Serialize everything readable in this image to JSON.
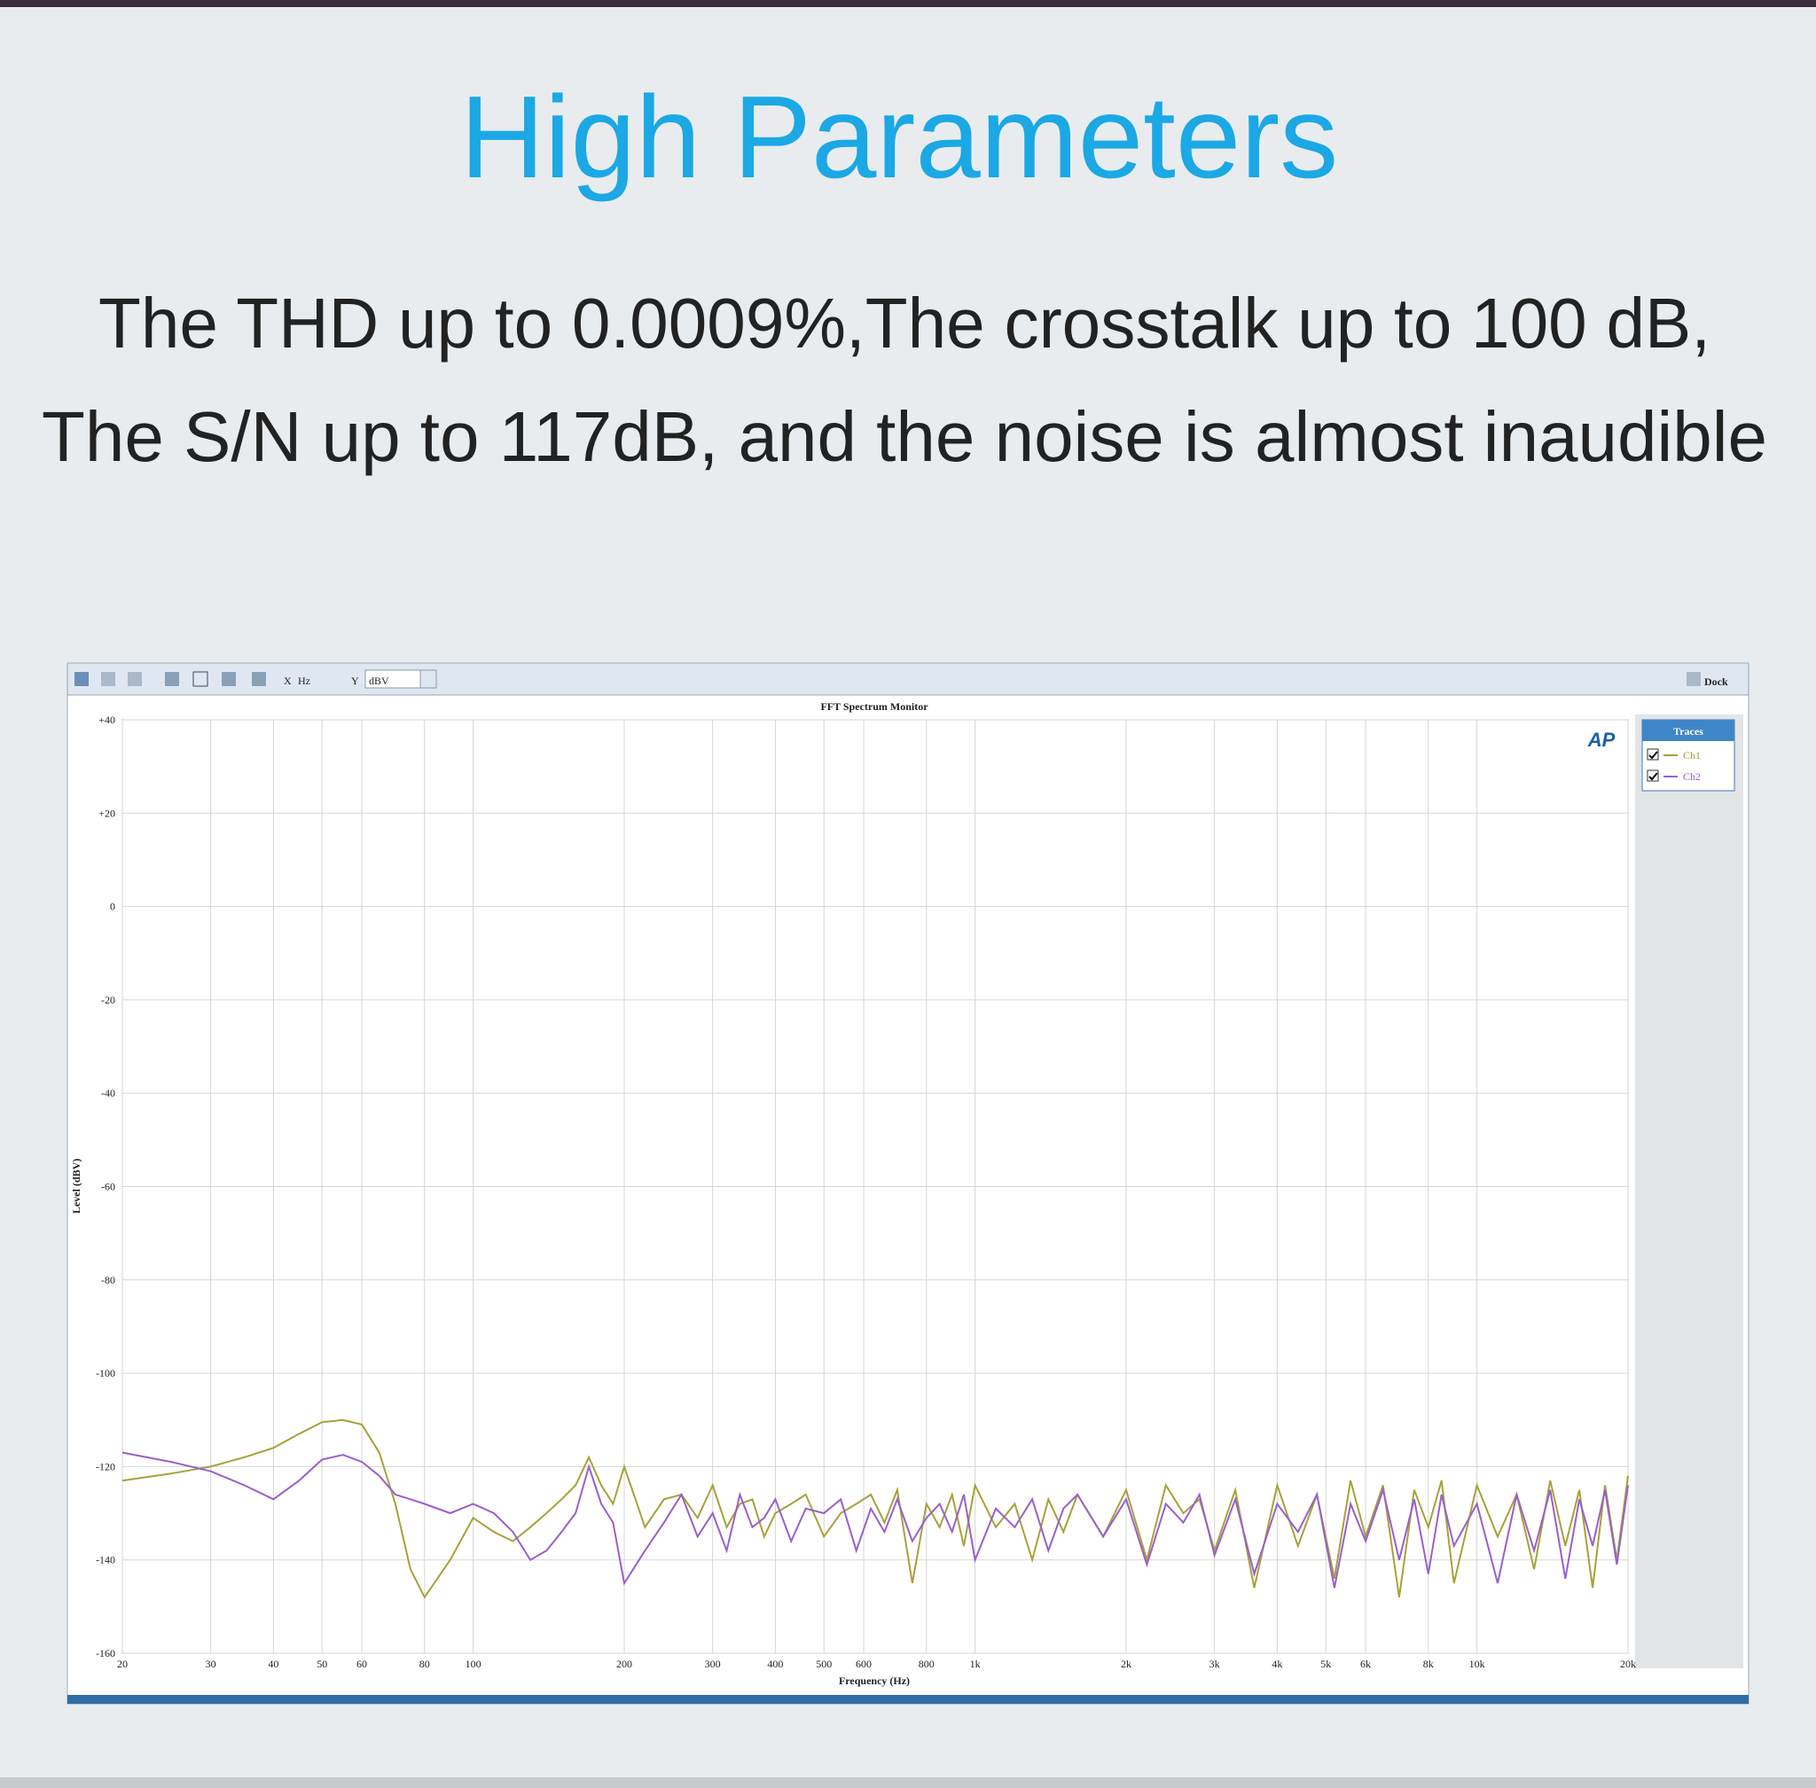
{
  "header": {
    "title": "High Parameters",
    "lines": [
      "The THD up to 0.0009%,The crosstalk up to 100 dB,",
      "The S/N up to 117dB, and the noise is almost inaudible"
    ]
  },
  "toolbar": {
    "x_label": "X",
    "x_unit": "Hz",
    "y_label": "Y",
    "y_unit": "dBV",
    "dock": "Dock"
  },
  "logo": "AP",
  "chart_data": {
    "type": "line",
    "title": "FFT Spectrum Monitor",
    "x_label": "Frequency (Hz)",
    "y_label": "Level (dBV)",
    "x_scale": "log",
    "grid": true,
    "legend_title": "Traces",
    "legend": "right",
    "x": [
      20,
      25,
      30,
      35,
      40,
      45,
      50,
      55,
      60,
      65,
      70,
      75,
      80,
      90,
      100,
      110,
      120,
      130,
      140,
      150,
      160,
      170,
      180,
      190,
      200,
      220,
      240,
      260,
      280,
      300,
      320,
      340,
      360,
      380,
      400,
      430,
      460,
      500,
      540,
      580,
      620,
      660,
      700,
      750,
      800,
      850,
      900,
      950,
      1000,
      1100,
      1200,
      1300,
      1400,
      1500,
      1600,
      1800,
      2000,
      2200,
      2400,
      2600,
      2800,
      3000,
      3300,
      3600,
      4000,
      4400,
      4800,
      5200,
      5600,
      6000,
      6500,
      7000,
      7500,
      8000,
      8500,
      9000,
      10000,
      11000,
      12000,
      13000,
      14000,
      15000,
      16000,
      17000,
      18000,
      19000,
      20000
    ],
    "series": [
      {
        "name": "Ch1",
        "color": "#a5a23a",
        "values": [
          -123,
          -121.5,
          -120,
          -118,
          -116,
          -113,
          -110.5,
          -110,
          -111,
          -117,
          -128,
          -142,
          -148,
          -140,
          -131,
          -134,
          -136,
          -133,
          -130,
          -127,
          -124,
          -118,
          -124,
          -128,
          -120,
          -133,
          -127,
          -126,
          -131,
          -124,
          -133,
          -128,
          -127,
          -135,
          -130,
          -128,
          -126,
          -135,
          -130,
          -128,
          -126,
          -132,
          -125,
          -145,
          -128,
          -133,
          -126,
          -137,
          -124,
          -133,
          -128,
          -140,
          -127,
          -134,
          -126,
          -135,
          -125,
          -140,
          -124,
          -130,
          -127,
          -138,
          -125,
          -146,
          -124,
          -137,
          -126,
          -144,
          -123,
          -135,
          -124,
          -148,
          -125,
          -133,
          -123,
          -145,
          -124,
          -135,
          -126,
          -142,
          -123,
          -137,
          -125,
          -146,
          -124,
          -140,
          -122
        ]
      },
      {
        "name": "Ch2",
        "color": "#9b5fc9",
        "values": [
          -117,
          -119,
          -121,
          -124,
          -127,
          -123,
          -118.5,
          -117.5,
          -119,
          -122,
          -126,
          -127,
          -128,
          -130,
          -128,
          -130,
          -134,
          -140,
          -138,
          -134,
          -130,
          -120,
          -128,
          -132,
          -145,
          -138,
          -132,
          -126,
          -135,
          -130,
          -138,
          -126,
          -133,
          -131,
          -127,
          -136,
          -129,
          -130,
          -127,
          -138,
          -129,
          -134,
          -127,
          -136,
          -131,
          -128,
          -134,
          -126,
          -140,
          -129,
          -133,
          -127,
          -138,
          -129,
          -126,
          -135,
          -127,
          -141,
          -128,
          -132,
          -126,
          -139,
          -127,
          -143,
          -128,
          -134,
          -126,
          -146,
          -128,
          -136,
          -125,
          -140,
          -127,
          -143,
          -126,
          -137,
          -128,
          -145,
          -126,
          -138,
          -125,
          -144,
          -127,
          -137,
          -125,
          -141,
          -124
        ]
      }
    ],
    "xlim": [
      20,
      20000
    ],
    "xticks": [
      20,
      30,
      40,
      50,
      60,
      80,
      100,
      200,
      300,
      400,
      500,
      600,
      800,
      {
        "value": 1000,
        "label": "1k"
      },
      {
        "value": 2000,
        "label": "2k"
      },
      {
        "value": 3000,
        "label": "3k"
      },
      {
        "value": 4000,
        "label": "4k"
      },
      {
        "value": 5000,
        "label": "5k"
      },
      {
        "value": 6000,
        "label": "6k"
      },
      {
        "value": 8000,
        "label": "8k"
      },
      {
        "value": 10000,
        "label": "10k"
      },
      {
        "value": 20000,
        "label": "20k"
      }
    ],
    "ylim": [
      -160,
      40
    ],
    "yticks": [
      {
        "value": 40,
        "label": "+40"
      },
      {
        "value": 20,
        "label": "+20"
      },
      0,
      -20,
      -40,
      -60,
      -80,
      -100,
      -120,
      -140,
      -160
    ]
  }
}
